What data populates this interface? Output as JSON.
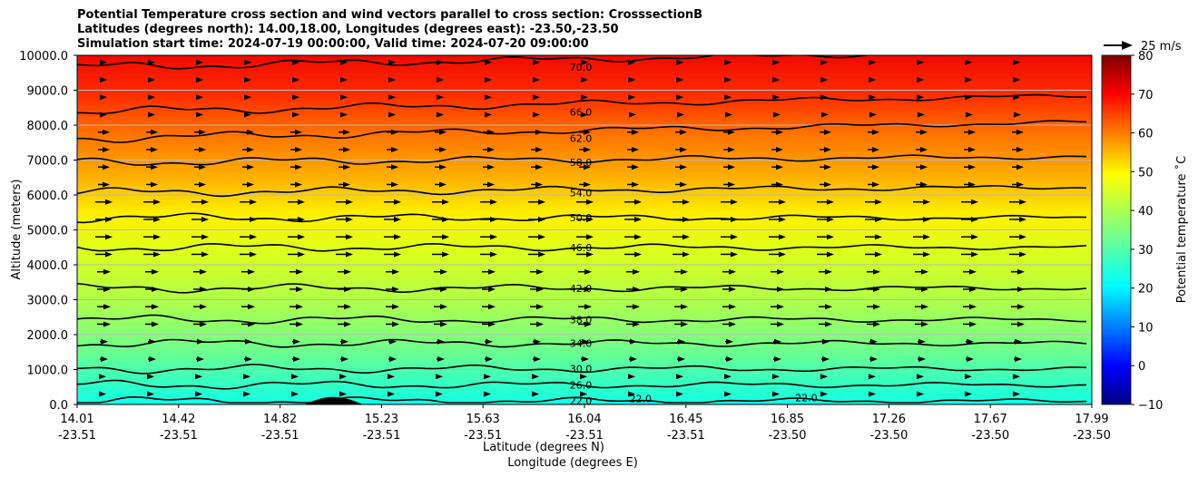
{
  "chart_data": {
    "type": "heatmap",
    "title_lines": [
      "Potential Temperature cross section and wind vectors parallel to cross section: CrosssectionB",
      "Latitudes (degrees north): 14.00,18.00, Longitudes (degrees east): -23.50,-23.50",
      "Simulation start time: 2024-07-19 00:00:00, Valid time: 2024-07-20 09:00:00"
    ],
    "xlabel_lat": "Latitude (degrees N)",
    "xlabel_lon": "Longitude (degrees E)",
    "ylabel": "Altitude (meters)",
    "ylim": [
      0,
      10000
    ],
    "x_ticks": [
      {
        "lat": "14.01",
        "lon": "-23.51"
      },
      {
        "lat": "14.42",
        "lon": "-23.51"
      },
      {
        "lat": "14.82",
        "lon": "-23.51"
      },
      {
        "lat": "15.23",
        "lon": "-23.51"
      },
      {
        "lat": "15.63",
        "lon": "-23.51"
      },
      {
        "lat": "16.04",
        "lon": "-23.51"
      },
      {
        "lat": "16.45",
        "lon": "-23.51"
      },
      {
        "lat": "16.85",
        "lon": "-23.50"
      },
      {
        "lat": "17.26",
        "lon": "-23.50"
      },
      {
        "lat": "17.67",
        "lon": "-23.50"
      },
      {
        "lat": "17.99",
        "lon": "-23.50"
      }
    ],
    "y_ticks": [
      "0.0",
      "1000.0",
      "2000.0",
      "3000.0",
      "4000.0",
      "5000.0",
      "6000.0",
      "7000.0",
      "8000.0",
      "9000.0",
      "10000.0"
    ],
    "grid": true,
    "colorbar": {
      "label": "Potential temperature ˚C",
      "min": -10,
      "max": 80,
      "ticks": [
        "−10",
        "0",
        "10",
        "20",
        "30",
        "40",
        "50",
        "60",
        "70",
        "80"
      ],
      "colormap": "jet"
    },
    "contours": [
      {
        "label": "22.0",
        "altitude": 100
      },
      {
        "label": "26.0",
        "altitude": 560
      },
      {
        "label": "30.0",
        "altitude": 1020
      },
      {
        "label": "34.0",
        "altitude": 1750
      },
      {
        "label": "38.0",
        "altitude": 2430
      },
      {
        "label": "42.0",
        "altitude": 3330
      },
      {
        "label": "46.0",
        "altitude": 4500
      },
      {
        "label": "50.0",
        "altitude": 5350
      },
      {
        "label": "54.0",
        "altitude": 6070
      },
      {
        "label": "58.0",
        "altitude": 6940
      },
      {
        "label": "62.0",
        "altitude": 7620
      },
      {
        "label": "66.0",
        "altitude": 8380
      },
      {
        "label": "70.0",
        "altitude": 9660
      }
    ],
    "extra_contour_labels": [
      {
        "label": "22.0",
        "lat": 16.22,
        "altitude": 60
      },
      {
        "label": "22.0",
        "lat": 16.87,
        "altitude": 90
      }
    ],
    "wind_reference": {
      "label": "25 m/s",
      "speed": 25
    }
  }
}
